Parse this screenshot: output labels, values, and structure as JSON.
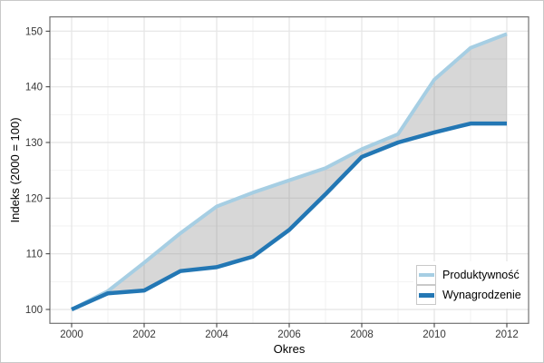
{
  "chart_data": {
    "type": "area",
    "title": "",
    "xlabel": "Okres",
    "ylabel": "Indeks (2000 = 100)",
    "x": [
      2000,
      2001,
      2002,
      2003,
      2004,
      2005,
      2006,
      2007,
      2008,
      2009,
      2010,
      2011,
      2012
    ],
    "series": [
      {
        "name": "Produktywność",
        "color": "#a6cee3",
        "values": [
          100,
          103.3,
          108.4,
          113.7,
          118.5,
          121.0,
          123.2,
          125.4,
          128.8,
          131.5,
          141.3,
          147.0,
          149.5
        ]
      },
      {
        "name": "Wynagrodzenie",
        "color": "#2377b4",
        "values": [
          100,
          102.9,
          103.4,
          106.9,
          107.6,
          109.5,
          114.3,
          120.7,
          127.4,
          130.0,
          131.8,
          133.4,
          133.4
        ]
      }
    ],
    "fill_between": {
      "between": [
        "Produktywność",
        "Wynagrodzenie"
      ],
      "color": "#8c8c8c",
      "opacity": 0.35
    },
    "x_ticks": [
      2000,
      2002,
      2004,
      2006,
      2008,
      2010,
      2012
    ],
    "y_ticks": [
      100,
      110,
      120,
      130,
      140,
      150
    ],
    "x_minor_ticks": [
      2001,
      2003,
      2005,
      2007,
      2009,
      2011
    ],
    "y_minor_ticks": [
      105,
      115,
      125,
      135,
      145
    ],
    "xlim": [
      1999.4,
      2012.6
    ],
    "ylim": [
      97.5,
      152.6
    ],
    "grid": "on",
    "legend_position": "bottom-right",
    "panel_border_color": "#737373",
    "grid_major_color": "#e4e4e4",
    "grid_minor_color": "#f2f2f2"
  }
}
